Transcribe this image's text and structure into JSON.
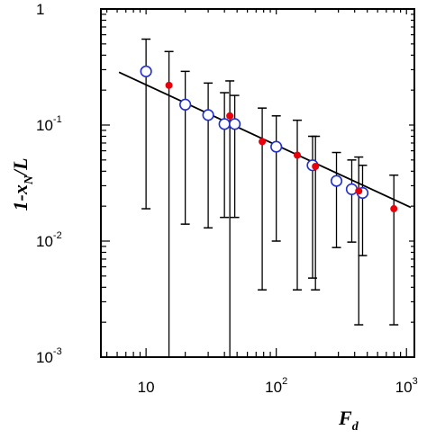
{
  "chart_data": {
    "type": "scatter",
    "xscale": "log",
    "yscale": "log",
    "xlim": [
      4.5,
      1150
    ],
    "ylim": [
      0.001,
      1
    ],
    "xlabel": {
      "base": "F",
      "sub": "d"
    },
    "ylabel": {
      "main": "1-x",
      "sub": "N",
      "tail": "/L"
    },
    "grid": false,
    "x_ticks": [
      {
        "value": 10,
        "base": "10",
        "exp": ""
      },
      {
        "value": 100,
        "base": "10",
        "exp": "2"
      },
      {
        "value": 1000,
        "base": "10",
        "exp": "3"
      }
    ],
    "y_ticks": [
      {
        "value": 1,
        "base": "1",
        "exp": ""
      },
      {
        "value": 0.1,
        "base": "10",
        "exp": "-1"
      },
      {
        "value": 0.01,
        "base": "10",
        "exp": "-2"
      },
      {
        "value": 0.001,
        "base": "10",
        "exp": "-3"
      }
    ],
    "series": [
      {
        "marker": "open-circle",
        "color": "#2230cc",
        "points": [
          {
            "x": 10,
            "y": 0.29,
            "lo": 0.019,
            "hi": 0.55
          },
          {
            "x": 20,
            "y": 0.15,
            "lo": 0.014,
            "hi": 0.29
          },
          {
            "x": 30,
            "y": 0.122,
            "lo": 0.013,
            "hi": 0.23
          },
          {
            "x": 40,
            "y": 0.102,
            "lo": 0.016,
            "hi": 0.19
          },
          {
            "x": 48,
            "y": 0.102,
            "lo": 0.016,
            "hi": 0.18
          },
          {
            "x": 100,
            "y": 0.065,
            "lo": 0.01,
            "hi": 0.12
          },
          {
            "x": 190,
            "y": 0.045,
            "lo": 0.0048,
            "hi": 0.08
          },
          {
            "x": 290,
            "y": 0.033,
            "lo": 0.0088,
            "hi": 0.058
          },
          {
            "x": 380,
            "y": 0.028,
            "lo": 0.0098,
            "hi": 0.05
          },
          {
            "x": 460,
            "y": 0.026,
            "lo": 0.0075,
            "hi": 0.045
          }
        ]
      },
      {
        "marker": "filled-circle",
        "color": "#e8000b",
        "points": [
          {
            "x": 15,
            "y": 0.22,
            "lo": 0.001,
            "hi": 0.43
          },
          {
            "x": 44,
            "y": 0.12,
            "lo": 0.001,
            "hi": 0.24
          },
          {
            "x": 78,
            "y": 0.072,
            "lo": 0.0038,
            "hi": 0.14
          },
          {
            "x": 145,
            "y": 0.055,
            "lo": 0.0038,
            "hi": 0.11
          },
          {
            "x": 200,
            "y": 0.044,
            "lo": 0.0038,
            "hi": 0.08
          },
          {
            "x": 430,
            "y": 0.027,
            "lo": 0.0019,
            "hi": 0.053
          },
          {
            "x": 800,
            "y": 0.019,
            "lo": 0.0019,
            "hi": 0.037
          }
        ]
      }
    ],
    "fit_line": {
      "x": [
        6.2,
        1080
      ],
      "y": [
        0.285,
        0.0195
      ],
      "color": "#000000"
    }
  }
}
